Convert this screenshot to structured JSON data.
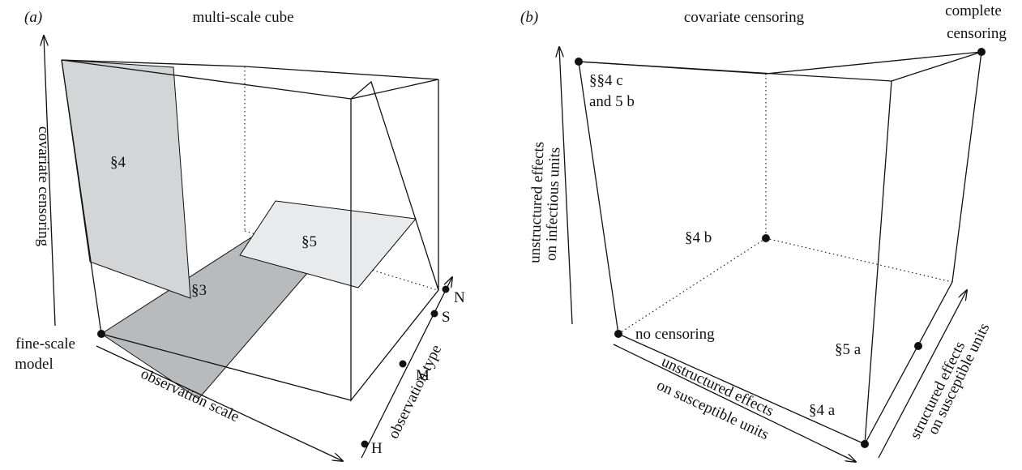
{
  "panel_a": {
    "tag": "(a)",
    "title": "multi-scale cube",
    "y_axis": "covariate censoring",
    "x_axis": "observation scale",
    "z_axis": "observation type",
    "origin_label": [
      "fine-scale",
      "model"
    ],
    "regions": {
      "s4": "§4",
      "s3": "§3",
      "s5": "§5"
    },
    "z_ticks": [
      "H",
      "M",
      "S",
      "N"
    ],
    "colors": {
      "s4": "#d4d5d7",
      "s3": "#b9babc",
      "s5": "#e9eaeb"
    }
  },
  "panel_b": {
    "tag": "(b)",
    "top_label": "covariate censoring",
    "corner_label": [
      "complete",
      "censoring"
    ],
    "origin_label": "no censoring",
    "y_axis": [
      "unstructured effects",
      "on infectious units"
    ],
    "x_axis": [
      "unstructured effects",
      "on susceptible units"
    ],
    "z_axis": [
      "structured effects",
      "on susceptible units"
    ],
    "points": {
      "top_left": [
        "§§4 c",
        "and 5 b"
      ],
      "back": "§4 b",
      "front_right_edge": "§5 a",
      "bottom_edge": "§4 a"
    }
  }
}
